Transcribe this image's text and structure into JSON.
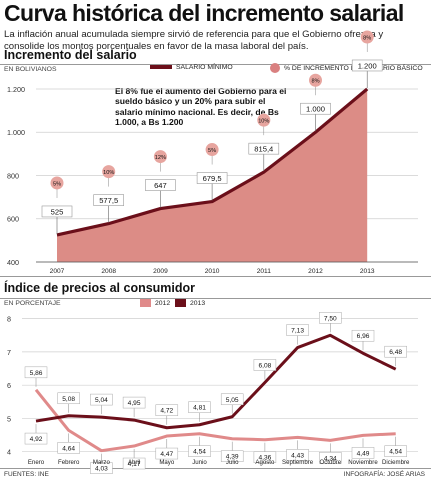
{
  "title": "Curva histórica del incremento salarial",
  "subtitle": "La inflación anual acumulada siempre sirvió de referencia para que el Gobierno ofrezca y consolide los montos porcentuales en favor de la masa laboral del país.",
  "footer": {
    "source": "FUENTES: INE",
    "credit": "INFOGRAFÍA: JOSÉ ARIAS"
  },
  "colors": {
    "salary_line": "#6b0f1a",
    "salary_area": "#dc8c86",
    "badge": "#e7a59f",
    "line_2012": "#e08a8a",
    "line_2013": "#6b0f1a"
  },
  "chart_data": [
    {
      "type": "area",
      "title": "Incremento del salario",
      "unit_label": "EN BOLIVIANOS",
      "legend": {
        "line": "SALARIO MÍNIMO",
        "badge": "% DE INCREMENTO DEL SALARIO BÁSICO",
        "position": "top"
      },
      "x": [
        "2007",
        "2008",
        "2009",
        "2010",
        "2011",
        "2012",
        "2013"
      ],
      "series": [
        {
          "name": "SALARIO MÍNIMO",
          "values": [
            525,
            577.5,
            647,
            679.5,
            815.4,
            1000,
            1200
          ]
        }
      ],
      "value_labels": [
        "525",
        "577,5",
        "647",
        "679,5",
        "815,4",
        "1.000",
        "1.200"
      ],
      "increments": [
        "5%",
        "10%",
        "12%",
        "5%",
        "10%",
        "8%",
        "8%"
      ],
      "yticks": [
        400,
        600,
        800,
        1000,
        1200
      ],
      "ytick_labels": [
        "400",
        "600",
        "800",
        "1.000",
        "1.200"
      ],
      "ylim": [
        400,
        1260
      ],
      "annotation": "El 8% fue el aumento del Gobierno para el sueldo básico y un 20% para subir el salario mínimo nacional. Es decir, de Bs 1.000, a Bs 1.200",
      "grid": "horizontal"
    },
    {
      "type": "line",
      "title": "Índice de precios al consumidor",
      "unit_label": "EN PORCENTAJE",
      "legend_position": "top-left",
      "categories": [
        "Enero",
        "Febrero",
        "Marzo",
        "Abril",
        "Mayo",
        "Junio",
        "Julio",
        "Agosto",
        "Septiembre",
        "Octubre",
        "Noviembre",
        "Diciembre"
      ],
      "series": [
        {
          "name": "2012",
          "values": [
            5.86,
            4.64,
            4.03,
            4.17,
            4.47,
            4.54,
            4.39,
            4.36,
            4.43,
            4.34,
            4.49,
            4.54
          ],
          "labels": [
            "5,86",
            "4,64",
            "4,03",
            "4,17",
            "4,47",
            "4,54",
            "4,39",
            "4,36",
            "4,43",
            "4,34",
            "4,49",
            "4,54"
          ]
        },
        {
          "name": "2013",
          "values": [
            4.92,
            5.08,
            5.04,
            4.95,
            4.72,
            4.81,
            5.05,
            6.08,
            7.13,
            7.5,
            6.96,
            6.48
          ],
          "labels": [
            "4,92",
            "5,08",
            "5,04",
            "4,95",
            "4,72",
            "4,81",
            "5,05",
            "6,08",
            "7,13",
            "7,50",
            "6,96",
            "6,48"
          ]
        }
      ],
      "yticks": [
        4,
        5,
        6,
        7,
        8
      ],
      "ylim": [
        3.9,
        8.2
      ],
      "grid": "horizontal"
    }
  ]
}
